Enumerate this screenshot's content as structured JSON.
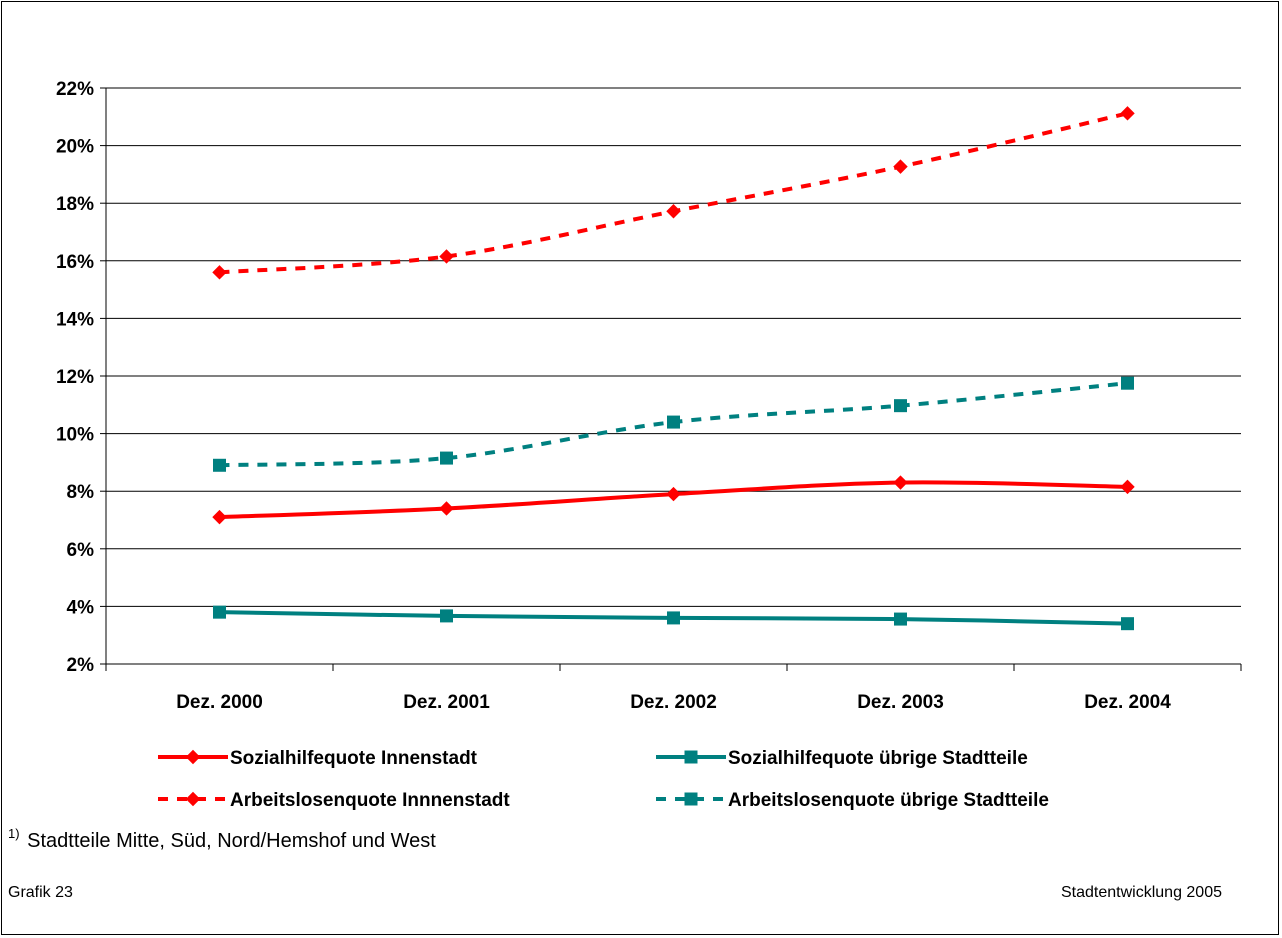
{
  "chart_data": {
    "type": "line",
    "categories": [
      "Dez. 2000",
      "Dez. 2001",
      "Dez. 2002",
      "Dez. 2003",
      "Dez. 2004"
    ],
    "ylim": [
      0.02,
      0.22
    ],
    "ytick_step": 0.02,
    "y_tick_labels": [
      "2%",
      "4%",
      "6%",
      "8%",
      "10%",
      "12%",
      "14%",
      "16%",
      "18%",
      "20%",
      "22%"
    ],
    "grid": true,
    "legend_position": "bottom",
    "series": [
      {
        "name": "Sozialhilfequote Innenstadt",
        "values": [
          0.071,
          0.074,
          0.079,
          0.083,
          0.0815
        ],
        "color": "#ff0000",
        "dashed": false,
        "marker": "diamond"
      },
      {
        "name": "Sozialhilfequote übrige Stadtteile",
        "values": [
          0.038,
          0.0367,
          0.036,
          0.0356,
          0.034
        ],
        "color": "#008080",
        "dashed": false,
        "marker": "square"
      },
      {
        "name": "Arbeitslosenquote Innnenstadt",
        "values": [
          0.156,
          0.1615,
          0.1772,
          0.1927,
          0.2112
        ],
        "color": "#ff0000",
        "dashed": true,
        "marker": "diamond"
      },
      {
        "name": "Arbeitslosenquote übrige Stadtteile",
        "values": [
          0.089,
          0.0915,
          0.104,
          0.1097,
          0.1175
        ],
        "color": "#008080",
        "dashed": true,
        "marker": "square"
      }
    ]
  },
  "footnote": {
    "marker": "1)",
    "text": " Stadtteile Mitte, Süd, Nord/Hemshof und West"
  },
  "grafik_label": "Grafik 23",
  "source_label": "Stadtentwicklung 2005"
}
